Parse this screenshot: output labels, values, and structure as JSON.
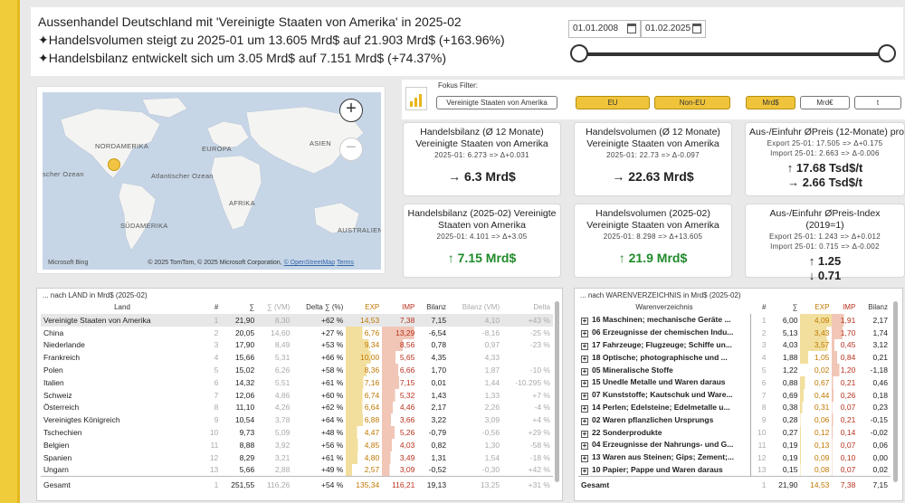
{
  "header": {
    "title": "Aussenhandel Deutschland mit 'Vereinigte Staaten von Amerika' in 2025-02",
    "line2": "✦Handelsvolumen steigt zu 2025-01 um 13.605 Mrd$ auf 21.903 Mrd$ (+163.96%)",
    "line3": "✦Handelsbilanz entwickelt sich um 3.05 Mrd$ auf 7.151 Mrd$ (+74.37%)"
  },
  "dates": {
    "from": "01.01.2008",
    "to": "01.02.2025"
  },
  "map": {
    "labels": [
      "NORDAMERIKA",
      "EUROPA",
      "ASIEN",
      "scher Ozean",
      "Atlantischer Ozean",
      "AFRIKA",
      "SÜDAMERIKA",
      "AUSTRALIEN"
    ],
    "zoom_in": "+",
    "zoom_out": "−",
    "attribution": "© 2025 TomTom, © 2025 Microsoft Corporation,",
    "osm": "© OpenStreetMap",
    "terms": "Terms",
    "bing": "Microsoft Bing"
  },
  "filters": {
    "fokus_label": "Fokus Filter:",
    "fokus_value": "Vereinigte Staaten von Amerika",
    "region": [
      "EU",
      "Non-EU"
    ],
    "unit": [
      "Mrd$",
      "Mrd€",
      "t"
    ]
  },
  "cards": [
    {
      "title": "Handelsbilanz (Ø 12 Monate) Vereinigte Staaten von Amerika",
      "sub": "2025-01: 6.273 => Δ+0.031",
      "value": "→ 6.3  Mrd$"
    },
    {
      "title": "Handelsvolumen (Ø 12 Monate) Vereinigte Staaten von Amerika",
      "sub": "2025-01: 22.73 => Δ-0.097",
      "value": "→ 22.63  Mrd$"
    },
    {
      "title": "Aus-/Einfuhr ØPreis (12-Monate) pro t",
      "sub": "Export 25-01: 17.505 => Δ+0.175",
      "sub2": "Import 25-01: 2.663 => Δ-0.006",
      "value": "↑ 17.68 Tsd$/t",
      "value2": "→ 2.66 Tsd$/t"
    },
    {
      "title": "Handelsbilanz (2025-02) Vereinigte Staaten von Amerika",
      "sub": "2025-01: 4.101 => Δ+3.05",
      "value": "↑ 7.15  Mrd$"
    },
    {
      "title": "Handelsvolumen (2025-02) Vereinigte Staaten von Amerika",
      "sub": "2025-01: 8.298 => Δ+13.605",
      "value": "↑ 21.9  Mrd$"
    },
    {
      "title": "Aus-/Einfuhr ØPreis-Index (2019=1)",
      "sub": "Export 25-01: 1.243 => Δ+0.012",
      "sub2": "Import 25-01: 0.715 => Δ-0.002",
      "value": "↑ 1.25",
      "value2": "↓ 0.71"
    }
  ],
  "land_table": {
    "caption": "... nach LAND in Mrd$ (2025-02)",
    "headers": [
      "Land",
      "#",
      "∑",
      "∑ (VM)",
      "Delta ∑ (%)",
      "EXP",
      "IMP",
      "Bilanz",
      "Bilanz (VM)",
      "Delta"
    ],
    "rows": [
      [
        "Vereinigte Staaten von Amerika",
        "1",
        "21,90",
        "8,30",
        "+62 %",
        "14,53",
        "7,38",
        "7,15",
        "4,10",
        "+43 %"
      ],
      [
        "China",
        "2",
        "20,05",
        "14,60",
        "+27 %",
        "6,76",
        "13,29",
        "-6,54",
        "-8,16",
        "-25 %"
      ],
      [
        "Niederlande",
        "3",
        "17,90",
        "8,49",
        "+53 %",
        "9,34",
        "8,56",
        "0,78",
        "0,97",
        "-23 %"
      ],
      [
        "Frankreich",
        "4",
        "15,66",
        "5,31",
        "+66 %",
        "10,00",
        "5,65",
        "4,35",
        "4,33",
        ""
      ],
      [
        "Polen",
        "5",
        "15,02",
        "6,26",
        "+58 %",
        "8,36",
        "6,66",
        "1,70",
        "1,87",
        "-10 %"
      ],
      [
        "Italien",
        "6",
        "14,32",
        "5,51",
        "+61 %",
        "7,16",
        "7,15",
        "0,01",
        "1,44",
        "-10.295 %"
      ],
      [
        "Schweiz",
        "7",
        "12,06",
        "4,86",
        "+60 %",
        "6,74",
        "5,32",
        "1,43",
        "1,33",
        "+7 %"
      ],
      [
        "Österreich",
        "8",
        "11,10",
        "4,26",
        "+62 %",
        "6,64",
        "4,46",
        "2,17",
        "2,26",
        "-4 %"
      ],
      [
        "Vereinigtes Königreich",
        "9",
        "10,54",
        "3,78",
        "+64 %",
        "6,88",
        "3,66",
        "3,22",
        "3,09",
        "+4 %"
      ],
      [
        "Tschechien",
        "10",
        "9,73",
        "5,09",
        "+48 %",
        "4,47",
        "5,26",
        "-0,79",
        "-0,56",
        "+29 %"
      ],
      [
        "Belgien",
        "11",
        "8,88",
        "3,92",
        "+56 %",
        "4,85",
        "4,03",
        "0,82",
        "1,30",
        "-58 %"
      ],
      [
        "Spanien",
        "12",
        "8,29",
        "3,21",
        "+61 %",
        "4,80",
        "3,49",
        "1,31",
        "1,54",
        "-18 %"
      ],
      [
        "Ungarn",
        "13",
        "5,66",
        "2,88",
        "+49 %",
        "2,57",
        "3,09",
        "-0,52",
        "-0,30",
        "+42 %"
      ]
    ],
    "total": [
      "Gesamt",
      "1",
      "251,55",
      "116,26",
      "+54 %",
      "135,34",
      "116,21",
      "19,13",
      "13,25",
      "+31 %"
    ]
  },
  "waren_table": {
    "caption": "... nach WARENVERZEICHNIS in Mrd$ (2025-02)",
    "headers": [
      "Warenverzeichnis",
      "#",
      "∑",
      "EXP",
      "IMP",
      "Bilanz"
    ],
    "rows": [
      [
        "16 Maschinen; mechanische Geräte ...",
        "1",
        "6,00",
        "4,09",
        "1,91",
        "2,17"
      ],
      [
        "06 Erzeugnisse der chemischen Indu...",
        "2",
        "5,13",
        "3,43",
        "1,70",
        "1,74"
      ],
      [
        "17 Fahrzeuge; Flugzeuge; Schiffe un...",
        "3",
        "4,03",
        "3,57",
        "0,45",
        "3,12"
      ],
      [
        "18 Optische; photographische und ...",
        "4",
        "1,88",
        "1,05",
        "0,84",
        "0,21"
      ],
      [
        "05 Mineralische Stoffe",
        "5",
        "1,22",
        "0,02",
        "1,20",
        "-1,18"
      ],
      [
        "15 Unedle Metalle und Waren daraus",
        "6",
        "0,88",
        "0,67",
        "0,21",
        "0,46"
      ],
      [
        "07 Kunststoffe; Kautschuk und Ware...",
        "7",
        "0,69",
        "0,44",
        "0,26",
        "0,18"
      ],
      [
        "14 Perlen; Edelsteine; Edelmetalle u...",
        "8",
        "0,38",
        "0,31",
        "0,07",
        "0,23"
      ],
      [
        "02 Waren pflanzlichen Ursprungs",
        "9",
        "0,28",
        "0,06",
        "0,21",
        "-0,15"
      ],
      [
        "22 Sonderprodukte",
        "10",
        "0,27",
        "0,12",
        "0,14",
        "-0,02"
      ],
      [
        "04 Erzeugnisse der Nahrungs- und G...",
        "11",
        "0,19",
        "0,13",
        "0,07",
        "0,06"
      ],
      [
        "13 Waren aus Steinen; Gips; Zement;...",
        "12",
        "0,19",
        "0,09",
        "0,10",
        "0,00"
      ],
      [
        "10 Papier; Pappe und Waren daraus",
        "13",
        "0,15",
        "0,08",
        "0,07",
        "0,02"
      ]
    ],
    "total": [
      "Gesamt",
      "1",
      "21,90",
      "14,53",
      "7,38",
      "7,15"
    ]
  },
  "colors": {
    "accent": "#f0c43a",
    "positive": "#1f8a2a",
    "export": "#c07800",
    "import": "#b8321e"
  }
}
